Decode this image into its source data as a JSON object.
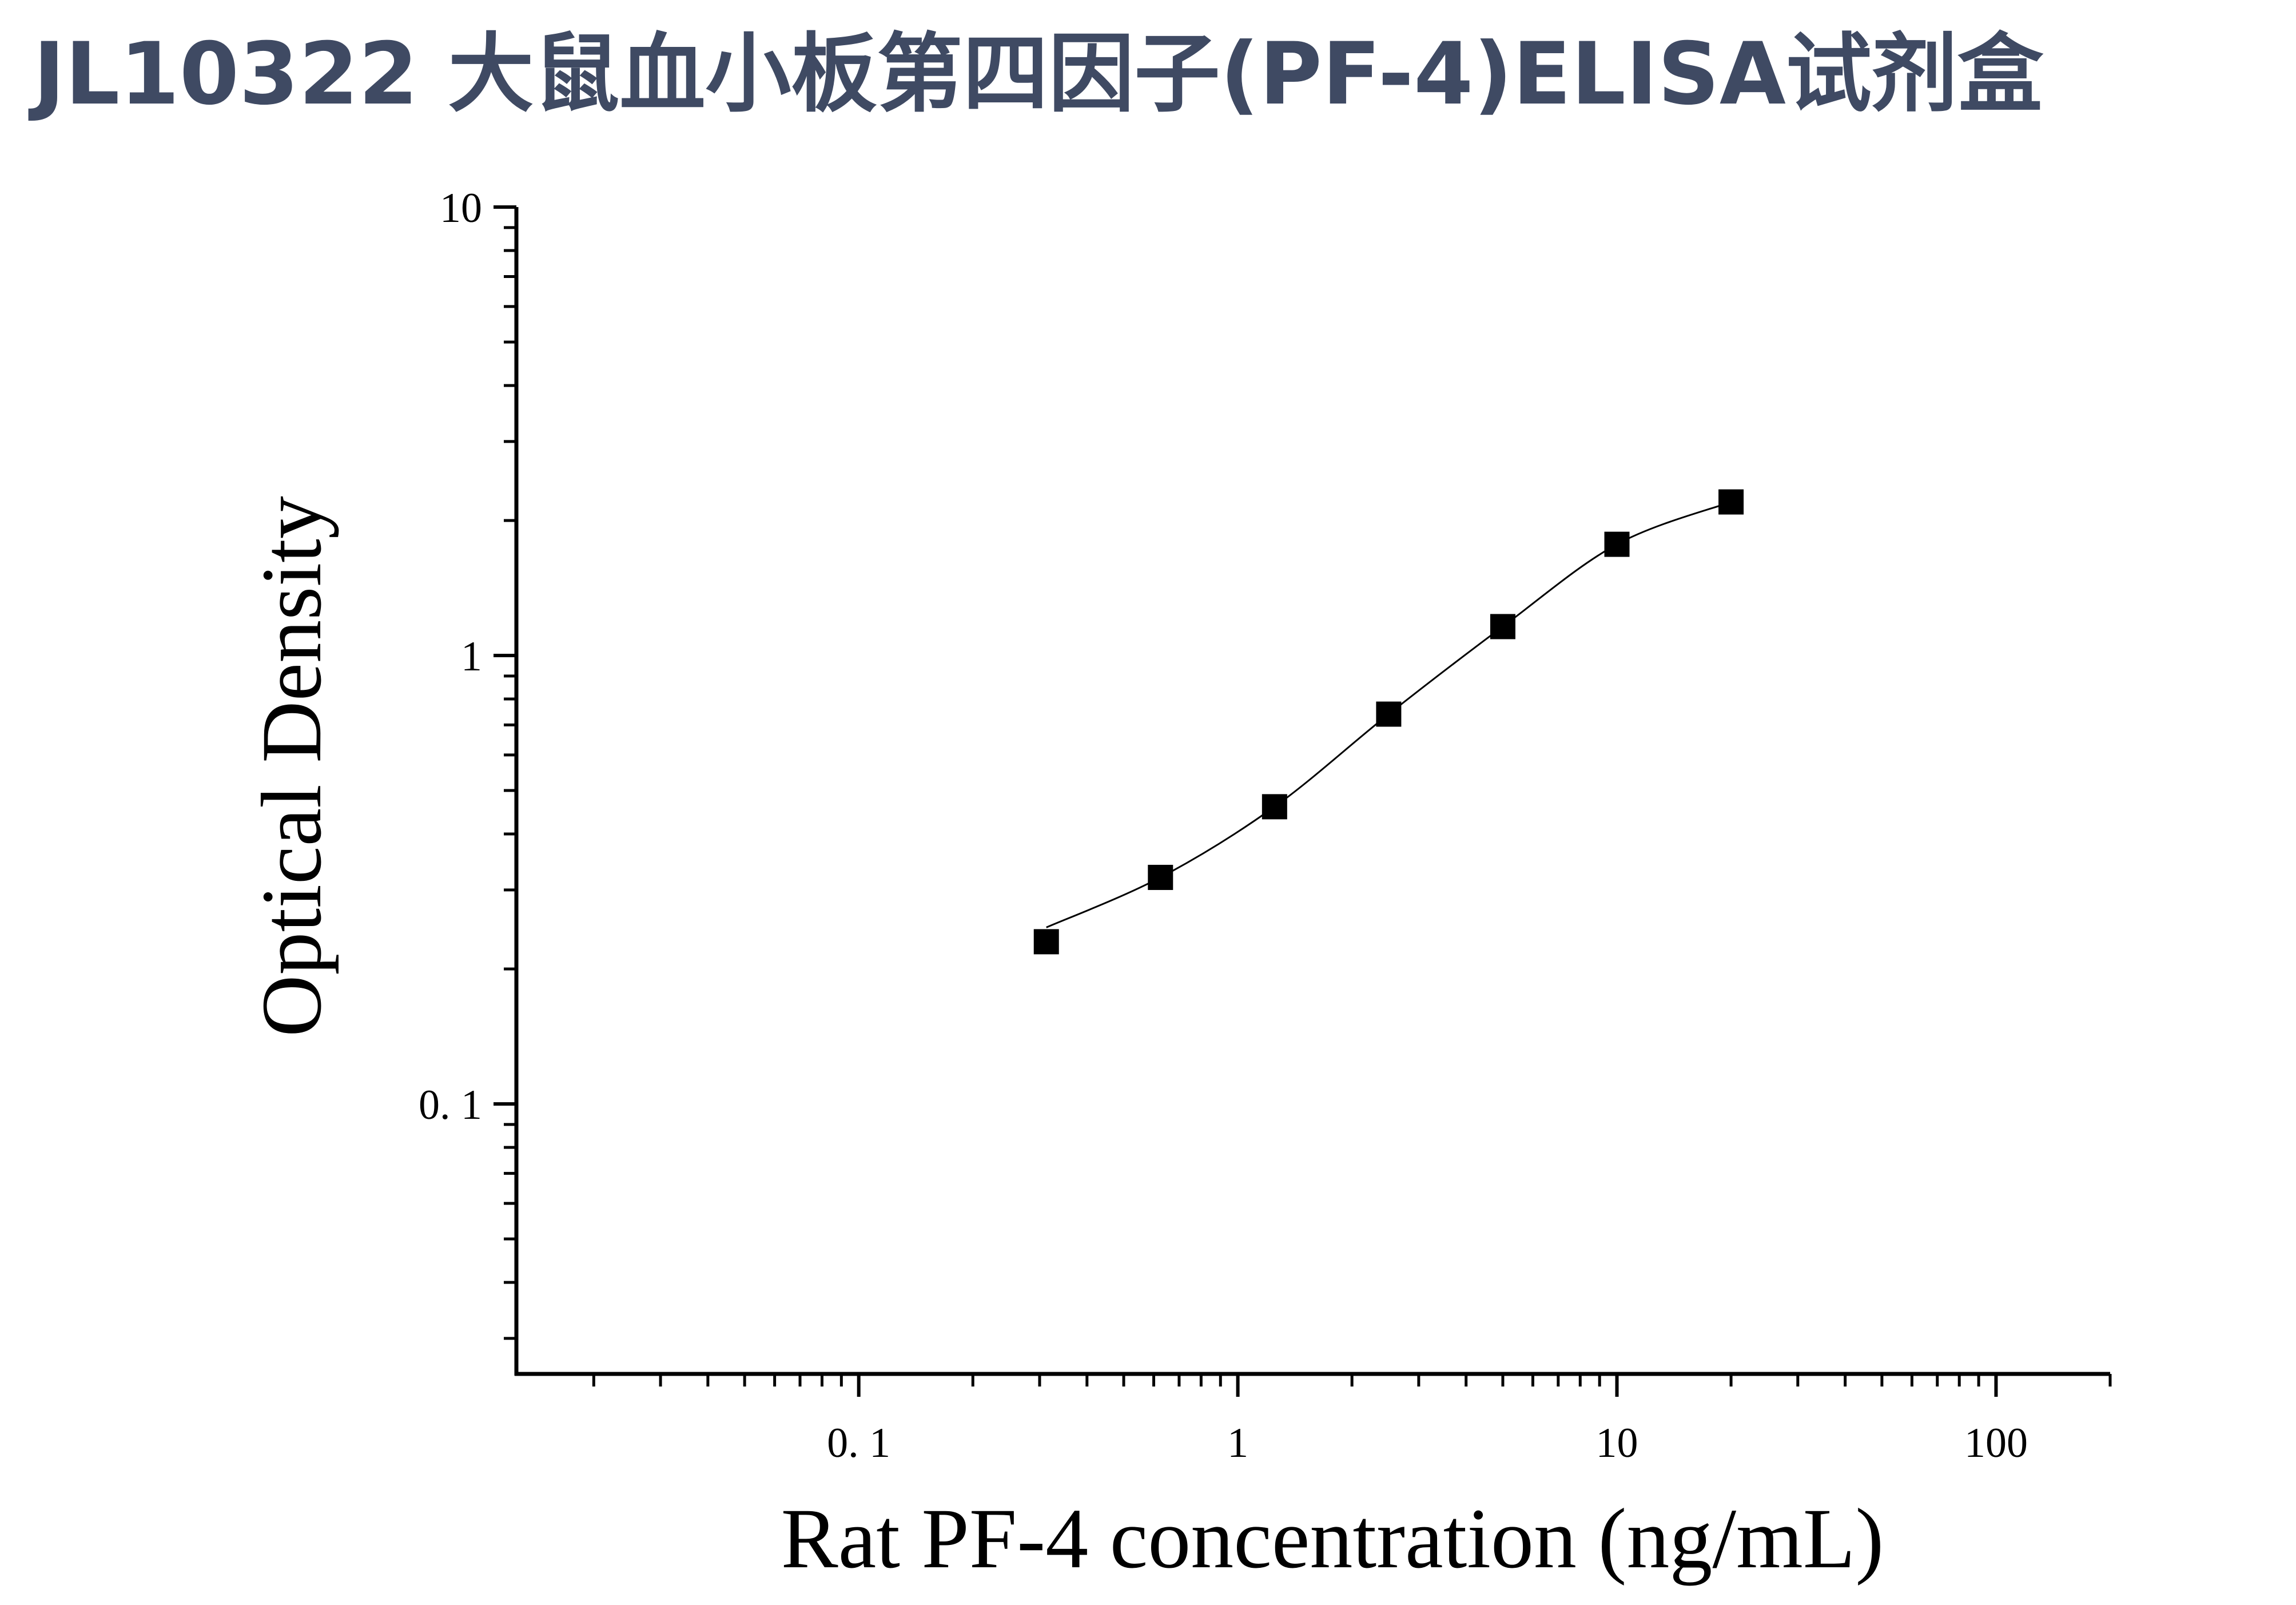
{
  "title": "JL10322 大鼠血小板第四因子(PF-4)ELISA试剂盒",
  "chart_data": {
    "type": "scatter",
    "title": "JL10322 大鼠血小板第四因子(PF-4)ELISA试剂盒",
    "xlabel": "Rat PF-4 concentration (ng/mL)",
    "ylabel": "Optical Density",
    "x_scale": "log",
    "y_scale": "log",
    "xlim": [
      0.0125,
      200
    ],
    "ylim": [
      0.025,
      10
    ],
    "x_ticks": [
      {
        "value": 0.1,
        "label": "0. 1"
      },
      {
        "value": 1,
        "label": "1"
      },
      {
        "value": 10,
        "label": "10"
      },
      {
        "value": 100,
        "label": "100"
      }
    ],
    "y_ticks": [
      {
        "value": 0.1,
        "label": "0. 1"
      },
      {
        "value": 1,
        "label": "1"
      },
      {
        "value": 10,
        "label": "10"
      }
    ],
    "grid": false,
    "legend": "none",
    "marker": "square",
    "marker_color": "#000000",
    "fit_curve": true,
    "series": [
      {
        "x": [
          0.3125,
          0.625,
          1.25,
          2.5,
          5,
          10,
          20
        ],
        "y": [
          0.23,
          0.32,
          0.46,
          0.74,
          1.16,
          1.77,
          2.2
        ]
      }
    ]
  }
}
